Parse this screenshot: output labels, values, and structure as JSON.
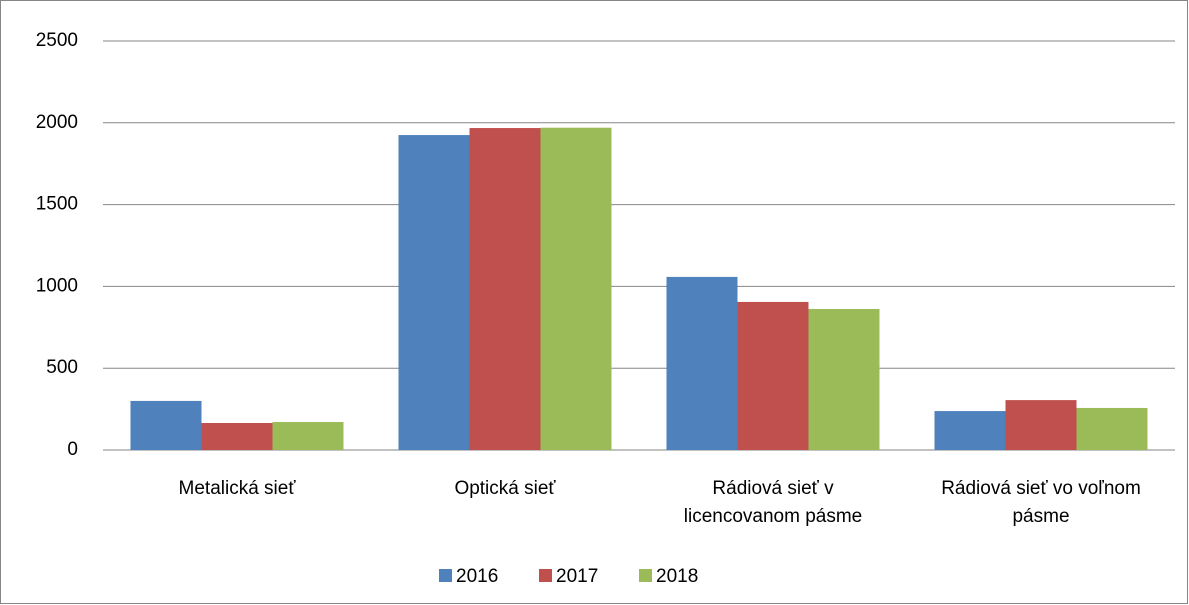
{
  "chart_data": {
    "type": "bar",
    "categories": [
      "Metalická sieť",
      "Optická sieť",
      "Rádiová sieť v licencovanom pásme",
      "Rádiová sieť vo voľnom pásme"
    ],
    "series": [
      {
        "name": "2016",
        "color": "#4f81bd",
        "values": [
          300,
          1925,
          1058,
          238
        ]
      },
      {
        "name": "2017",
        "color": "#c0504d",
        "values": [
          165,
          1968,
          905,
          305
        ]
      },
      {
        "name": "2018",
        "color": "#9bbb59",
        "values": [
          171,
          1970,
          862,
          257
        ]
      }
    ],
    "ylim": [
      0,
      2500
    ],
    "yticks": [
      0,
      500,
      1000,
      1500,
      2000,
      2500
    ],
    "grid": true,
    "legend": "bottom"
  }
}
